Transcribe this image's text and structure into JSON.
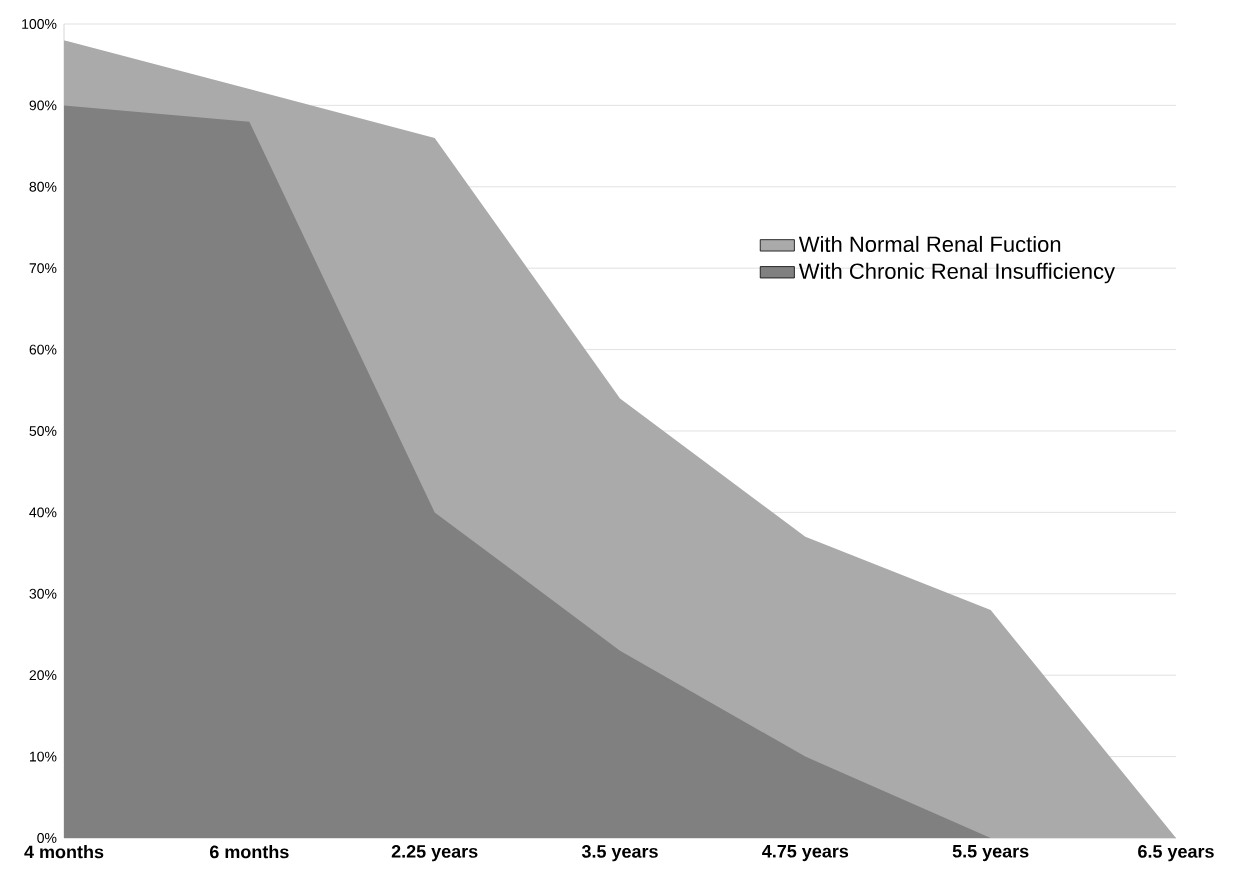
{
  "chart_data": {
    "type": "area",
    "categories": [
      "4 months",
      "6 months",
      "2.25 years",
      "3.5 years",
      "4.75 years",
      "5.5 years",
      "6.5 years"
    ],
    "series": [
      {
        "name": "With Normal Renal Fuction",
        "color": "#aaaaaa",
        "values": [
          98,
          92,
          86,
          54,
          37,
          28,
          0
        ]
      },
      {
        "name": "With Chronic Renal Insufficiency",
        "color": "#808080",
        "values": [
          90,
          88,
          40,
          23,
          10,
          0,
          0
        ]
      }
    ],
    "ylim": [
      0,
      100
    ],
    "yticks": [
      {
        "value": 0,
        "label": "0%"
      },
      {
        "value": 10,
        "label": "10%"
      },
      {
        "value": 20,
        "label": "20%"
      },
      {
        "value": 30,
        "label": "30%"
      },
      {
        "value": 40,
        "label": "40%"
      },
      {
        "value": 50,
        "label": "50%"
      },
      {
        "value": 60,
        "label": "60%"
      },
      {
        "value": 70,
        "label": "70%"
      },
      {
        "value": 80,
        "label": "80%"
      },
      {
        "value": 90,
        "label": "90%"
      },
      {
        "value": 100,
        "label": "100%"
      }
    ],
    "grid": "y",
    "legend": "right"
  }
}
